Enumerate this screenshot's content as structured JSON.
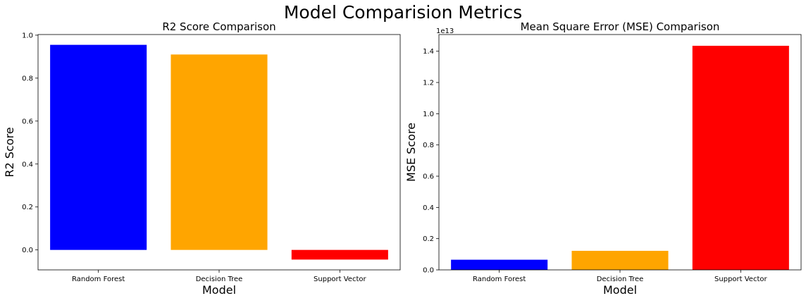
{
  "figure": {
    "title": "Model Comparision Metrics"
  },
  "chart_data": [
    {
      "type": "bar",
      "title": "R2 Score Comparison",
      "xlabel": "Model",
      "ylabel": "R2 Score",
      "categories": [
        "Random Forest",
        "Decision Tree",
        "Support Vector"
      ],
      "values": [
        0.955,
        0.91,
        -0.045
      ],
      "colors": [
        "#0000ff",
        "#ffa500",
        "#ff0000"
      ],
      "ylim": [
        -0.093,
        1.003
      ],
      "yticks": [
        0.0,
        0.2,
        0.4,
        0.6,
        0.8,
        1.0
      ],
      "ytick_labels": [
        "0.0",
        "0.2",
        "0.4",
        "0.6",
        "0.8",
        "1.0"
      ],
      "grid": false
    },
    {
      "type": "bar",
      "title": "Mean Square Error (MSE) Comparison",
      "xlabel": "Model",
      "ylabel": "MSE Score",
      "offset_label": "1e13",
      "categories": [
        "Random Forest",
        "Decision Tree",
        "Support Vector"
      ],
      "values": [
        0.065,
        0.122,
        1.435
      ],
      "value_scale": 10000000000000.0,
      "colors": [
        "#0000ff",
        "#ffa500",
        "#ff0000"
      ],
      "ylim": [
        0,
        1.507
      ],
      "yticks": [
        0.0,
        0.2,
        0.4,
        0.6,
        0.8,
        1.0,
        1.2,
        1.4
      ],
      "ytick_labels": [
        "0.0",
        "0.2",
        "0.4",
        "0.6",
        "0.8",
        "1.0",
        "1.2",
        "1.4"
      ],
      "grid": false
    }
  ]
}
